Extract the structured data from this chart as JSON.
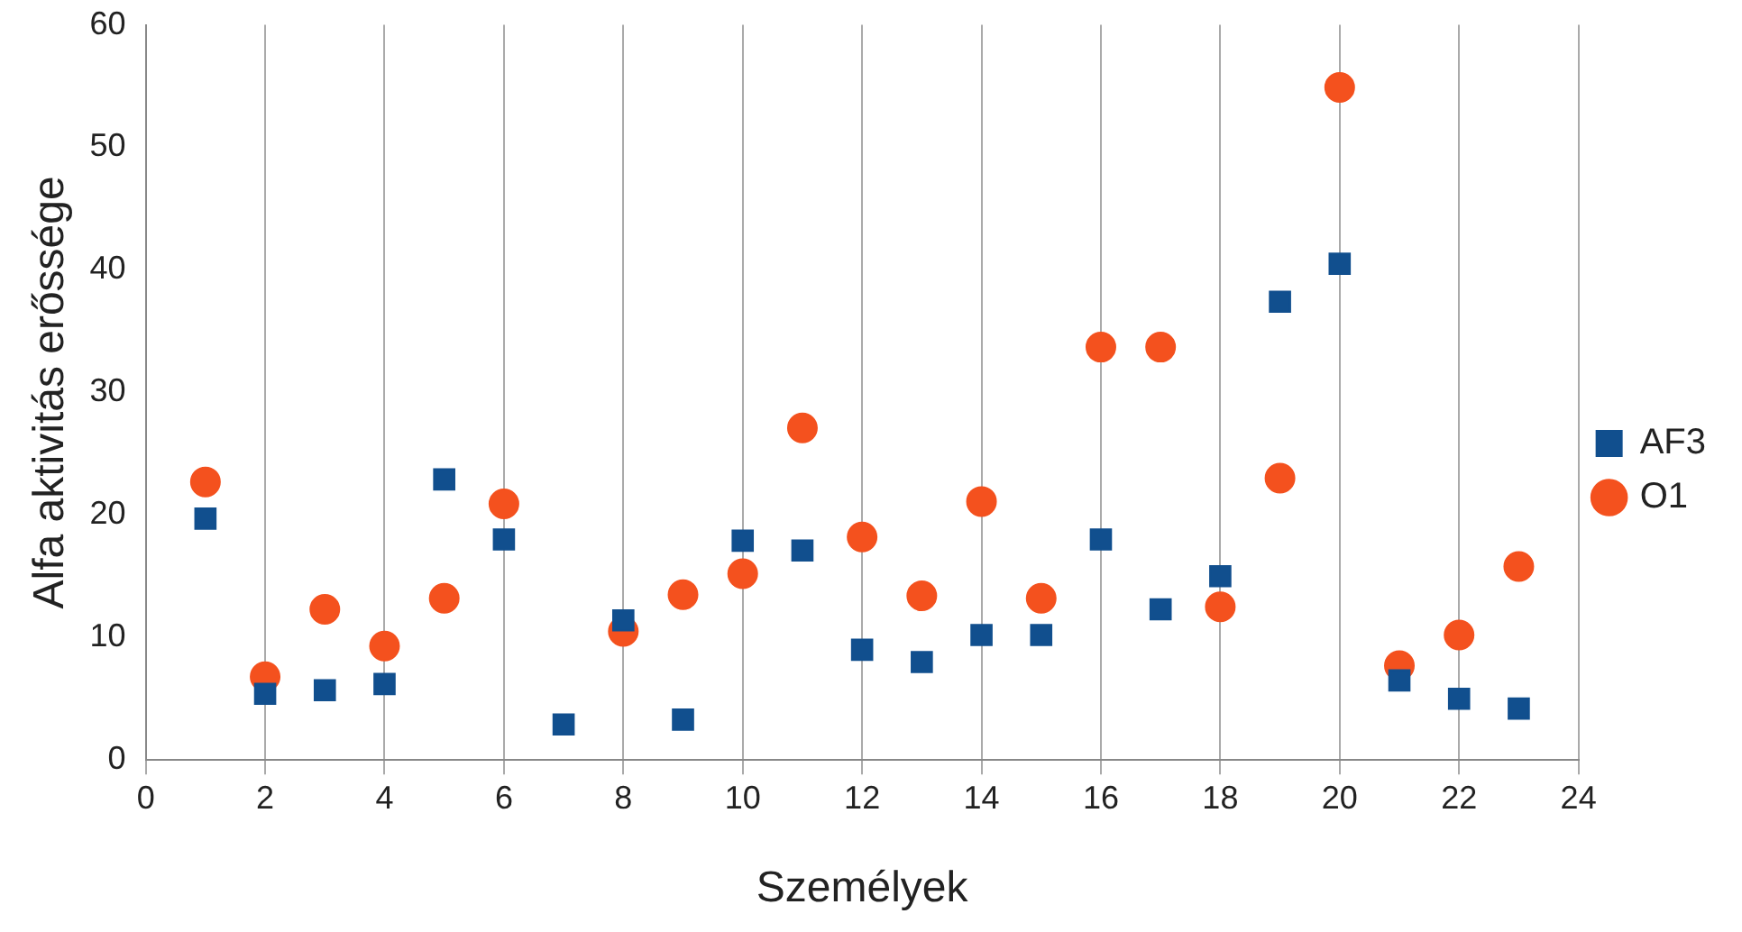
{
  "chart_data": {
    "type": "scatter",
    "xlabel": "Személyek",
    "ylabel": "Alfa aktivitás erőssége",
    "x": [
      1,
      2,
      3,
      4,
      5,
      6,
      7,
      8,
      9,
      10,
      11,
      12,
      13,
      14,
      15,
      16,
      17,
      18,
      19,
      20,
      21,
      22,
      23
    ],
    "xlim": [
      0,
      24
    ],
    "xticks": [
      0,
      2,
      4,
      6,
      8,
      10,
      12,
      14,
      16,
      18,
      20,
      22,
      24
    ],
    "ylim": [
      0,
      60
    ],
    "yticks": [
      0,
      10,
      20,
      30,
      40,
      50,
      60
    ],
    "grid": "x",
    "legend": "right",
    "series": [
      {
        "name": "AF3",
        "color": "#114f8e",
        "marker": "square",
        "values": [
          19.7,
          5.4,
          5.7,
          6.2,
          22.9,
          18.0,
          2.9,
          11.4,
          3.3,
          17.9,
          17.1,
          9.0,
          8.0,
          10.2,
          10.2,
          18.0,
          12.3,
          15.0,
          37.4,
          40.5,
          6.5,
          5.0,
          4.2
        ]
      },
      {
        "name": "O1",
        "color": "#f4511e",
        "marker": "circle",
        "values": [
          22.7,
          6.8,
          12.3,
          9.3,
          13.2,
          20.9,
          null,
          10.5,
          13.5,
          15.2,
          27.1,
          18.2,
          13.4,
          21.1,
          13.2,
          33.7,
          33.7,
          12.5,
          23.0,
          54.9,
          7.7,
          10.2,
          15.8
        ]
      }
    ]
  }
}
